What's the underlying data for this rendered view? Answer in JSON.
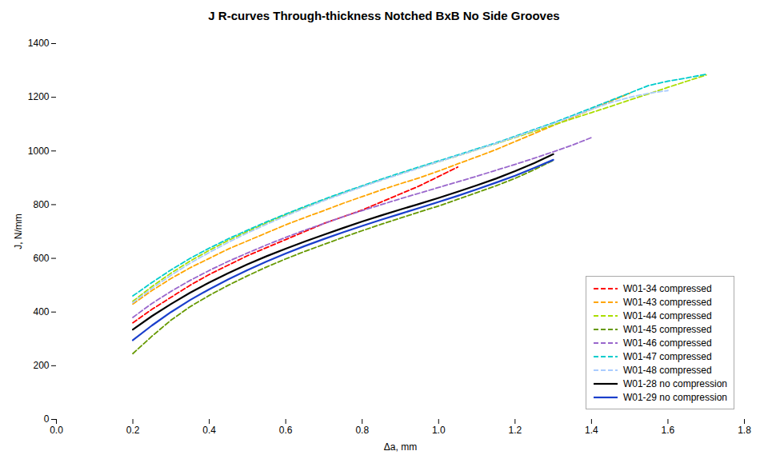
{
  "chart_data": {
    "type": "line",
    "title": "J R-curves Through-thickness Notched BxB No Side Grooves",
    "xlabel": "Δa, mm",
    "ylabel": "J, N/mm",
    "xlim": [
      0,
      1.8
    ],
    "ylim": [
      0,
      1400
    ],
    "xticks": [
      {
        "value": 0,
        "label": "0.0"
      },
      0.2,
      0.4,
      0.6,
      0.8,
      {
        "value": 1.0,
        "label": "1.0"
      },
      1.2,
      1.4,
      1.6,
      1.8
    ],
    "yticks": [
      0,
      200,
      400,
      600,
      800,
      1000,
      1200,
      1400
    ],
    "grid": false,
    "legend": "lower right",
    "series": [
      {
        "name": "W01-34 compressed",
        "color": "#FF0000",
        "line_style": "dashed",
        "x": [
          0.2,
          0.25,
          0.3,
          0.35,
          0.4,
          0.45,
          0.5,
          0.55,
          0.6,
          0.65,
          0.7,
          0.75,
          0.8,
          0.85,
          0.9,
          0.95,
          1.0,
          1.05
        ],
        "values": [
          360,
          410,
          455,
          500,
          540,
          575,
          610,
          640,
          670,
          700,
          730,
          755,
          780,
          810,
          840,
          870,
          905,
          940
        ]
      },
      {
        "name": "W01-43 compressed",
        "color": "#FFA500",
        "line_style": "dashed",
        "x": [
          0.2,
          0.25,
          0.3,
          0.35,
          0.4,
          0.45,
          0.5,
          0.55,
          0.6,
          0.65,
          0.7,
          0.75,
          0.8,
          0.85,
          0.9,
          0.95,
          1.0,
          1.05,
          1.1,
          1.15,
          1.2,
          1.25,
          1.3,
          1.35,
          1.4,
          1.45,
          1.5
        ],
        "values": [
          430,
          480,
          525,
          565,
          600,
          635,
          665,
          695,
          725,
          752,
          778,
          805,
          830,
          855,
          878,
          900,
          925,
          952,
          978,
          1005,
          1035,
          1065,
          1095,
          1125,
          1155,
          1185,
          1215
        ]
      },
      {
        "name": "W01-44 compressed",
        "color": "#AADD00",
        "line_style": "dashed",
        "x": [
          0.2,
          0.25,
          0.3,
          0.35,
          0.4,
          0.45,
          0.5,
          0.55,
          0.6,
          0.65,
          0.7,
          0.75,
          0.8,
          0.85,
          0.9,
          0.95,
          1.0,
          1.05,
          1.1,
          1.15,
          1.2,
          1.25,
          1.3,
          1.35,
          1.4,
          1.45,
          1.5,
          1.55,
          1.6,
          1.65,
          1.7
        ],
        "values": [
          440,
          495,
          545,
          590,
          630,
          667,
          700,
          732,
          762,
          790,
          817,
          843,
          868,
          892,
          915,
          938,
          960,
          982,
          1005,
          1027,
          1050,
          1073,
          1097,
          1120,
          1143,
          1166,
          1190,
          1213,
          1237,
          1260,
          1283
        ]
      },
      {
        "name": "W01-45 compressed",
        "color": "#669900",
        "line_style": "dashed",
        "x": [
          0.2,
          0.25,
          0.3,
          0.35,
          0.4,
          0.45,
          0.5,
          0.55,
          0.6,
          0.65,
          0.7,
          0.75,
          0.8,
          0.85,
          0.9,
          0.95,
          1.0,
          1.05,
          1.1,
          1.15,
          1.2,
          1.25,
          1.3
        ],
        "values": [
          245,
          310,
          370,
          420,
          462,
          500,
          535,
          568,
          598,
          626,
          652,
          678,
          703,
          727,
          750,
          773,
          795,
          820,
          845,
          870,
          898,
          930,
          965
        ]
      },
      {
        "name": "W01-46 compressed",
        "color": "#9966CC",
        "line_style": "dashed",
        "x": [
          0.2,
          0.25,
          0.3,
          0.35,
          0.4,
          0.45,
          0.5,
          0.55,
          0.6,
          0.65,
          0.7,
          0.75,
          0.8,
          0.85,
          0.9,
          0.95,
          1.0,
          1.05,
          1.1,
          1.15,
          1.2,
          1.25,
          1.3,
          1.35,
          1.4
        ],
        "values": [
          380,
          432,
          477,
          518,
          555,
          589,
          620,
          650,
          678,
          705,
          730,
          755,
          778,
          800,
          822,
          843,
          864,
          885,
          906,
          928,
          950,
          973,
          997,
          1022,
          1050
        ]
      },
      {
        "name": "W01-47 compressed",
        "color": "#00CCCC",
        "line_style": "dashed",
        "x": [
          0.2,
          0.25,
          0.3,
          0.35,
          0.4,
          0.45,
          0.5,
          0.55,
          0.6,
          0.65,
          0.7,
          0.75,
          0.8,
          0.85,
          0.9,
          0.95,
          1.0,
          1.05,
          1.1,
          1.15,
          1.2,
          1.25,
          1.3,
          1.35,
          1.4,
          1.45,
          1.5,
          1.55,
          1.6,
          1.65,
          1.7
        ],
        "values": [
          460,
          510,
          557,
          600,
          638,
          673,
          705,
          736,
          765,
          793,
          820,
          846,
          870,
          895,
          918,
          941,
          963,
          985,
          1008,
          1030,
          1055,
          1080,
          1105,
          1132,
          1160,
          1188,
          1216,
          1244,
          1260,
          1272,
          1286
        ]
      },
      {
        "name": "W01-48 compressed",
        "color": "#AACCFF",
        "line_style": "dashed",
        "x": [
          0.2,
          0.25,
          0.3,
          0.35,
          0.4,
          0.45,
          0.5,
          0.55,
          0.6,
          0.65,
          0.7,
          0.75,
          0.8,
          0.85,
          0.9,
          0.95,
          1.0,
          1.05,
          1.1,
          1.15,
          1.2,
          1.25,
          1.3,
          1.35,
          1.4,
          1.45,
          1.5,
          1.55,
          1.6
        ],
        "values": [
          435,
          488,
          537,
          582,
          622,
          660,
          695,
          727,
          758,
          787,
          815,
          841,
          867,
          891,
          914,
          937,
          960,
          982,
          1005,
          1028,
          1052,
          1077,
          1102,
          1128,
          1155,
          1180,
          1200,
          1215,
          1225
        ]
      },
      {
        "name": "W01-28 no compression",
        "color": "#000000",
        "line_style": "solid",
        "x": [
          0.2,
          0.25,
          0.3,
          0.35,
          0.4,
          0.45,
          0.5,
          0.55,
          0.6,
          0.65,
          0.7,
          0.75,
          0.8,
          0.85,
          0.9,
          0.95,
          1.0,
          1.05,
          1.1,
          1.15,
          1.2,
          1.25,
          1.3
        ],
        "values": [
          335,
          385,
          430,
          472,
          510,
          545,
          578,
          608,
          636,
          663,
          688,
          713,
          737,
          760,
          782,
          803,
          825,
          848,
          872,
          897,
          925,
          955,
          988
        ]
      },
      {
        "name": "W01-29 no compression",
        "color": "#1A3FCC",
        "line_style": "solid",
        "x": [
          0.2,
          0.25,
          0.3,
          0.35,
          0.4,
          0.45,
          0.5,
          0.55,
          0.6,
          0.65,
          0.7,
          0.75,
          0.8,
          0.85,
          0.9,
          0.95,
          1.0,
          1.05,
          1.1,
          1.15,
          1.2,
          1.25,
          1.3
        ],
        "values": [
          295,
          350,
          400,
          445,
          485,
          522,
          556,
          588,
          618,
          646,
          672,
          697,
          721,
          744,
          766,
          788,
          810,
          833,
          857,
          882,
          908,
          937,
          967
        ]
      }
    ]
  }
}
